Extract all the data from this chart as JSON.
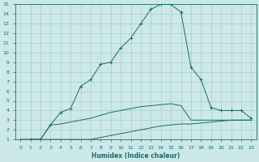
{
  "xlabel": "Humidex (Indice chaleur)",
  "background_color": "#cce8e8",
  "grid_color": "#aacccc",
  "line_color": "#1a6b6b",
  "xlim": [
    -0.5,
    23.5
  ],
  "ylim": [
    1,
    15
  ],
  "xticks": [
    0,
    1,
    2,
    3,
    4,
    5,
    6,
    7,
    8,
    9,
    10,
    11,
    12,
    13,
    14,
    15,
    16,
    17,
    18,
    19,
    20,
    21,
    22,
    23
  ],
  "yticks": [
    1,
    2,
    3,
    4,
    5,
    6,
    7,
    8,
    9,
    10,
    11,
    12,
    13,
    14,
    15
  ],
  "curves": [
    {
      "x": [
        0,
        1,
        2,
        3,
        4,
        5,
        6,
        7,
        8,
        9,
        10,
        11,
        12,
        13,
        14,
        15,
        16,
        17,
        18,
        19,
        20,
        21,
        22,
        23
      ],
      "y": [
        1,
        1,
        1,
        1,
        1,
        1,
        1,
        1,
        1,
        1,
        1,
        1,
        1,
        1,
        1,
        1,
        1,
        1,
        1,
        1,
        1,
        1,
        1,
        1
      ],
      "has_markers": false
    },
    {
      "x": [
        0,
        1,
        2,
        3,
        4,
        5,
        6,
        7,
        8,
        9,
        10,
        11,
        12,
        13,
        14,
        15,
        16,
        17,
        18,
        19,
        20,
        21,
        22,
        23
      ],
      "y": [
        1,
        1,
        1,
        1,
        1,
        1,
        1,
        1,
        1.2,
        1.4,
        1.6,
        1.8,
        2.0,
        2.2,
        2.4,
        2.5,
        2.6,
        2.6,
        2.7,
        2.8,
        2.9,
        3.0,
        3.0,
        3.0
      ],
      "has_markers": false
    },
    {
      "x": [
        0,
        1,
        2,
        3,
        4,
        5,
        6,
        7,
        8,
        9,
        10,
        11,
        12,
        13,
        14,
        15,
        16,
        17,
        18,
        19,
        20,
        21,
        22,
        23
      ],
      "y": [
        1,
        1,
        1,
        2.5,
        2.6,
        2.8,
        3.0,
        3.2,
        3.5,
        3.8,
        4.0,
        4.2,
        4.4,
        4.5,
        4.6,
        4.7,
        4.5,
        3.0,
        3.0,
        3.0,
        3.0,
        3.0,
        3.0,
        3.0
      ],
      "has_markers": false
    },
    {
      "x": [
        1,
        2,
        3,
        4,
        5,
        6,
        7,
        8,
        9,
        10,
        11,
        12,
        13,
        14,
        15,
        16,
        17,
        18,
        19,
        20,
        21,
        22,
        23
      ],
      "y": [
        1,
        1,
        2.5,
        3.8,
        4.2,
        6.5,
        7.2,
        8.8,
        9.0,
        10.5,
        11.5,
        13.0,
        14.5,
        15.0,
        15.0,
        14.2,
        8.5,
        7.2,
        4.3,
        4.0,
        4.0,
        4.0,
        3.2
      ],
      "has_markers": true
    }
  ]
}
